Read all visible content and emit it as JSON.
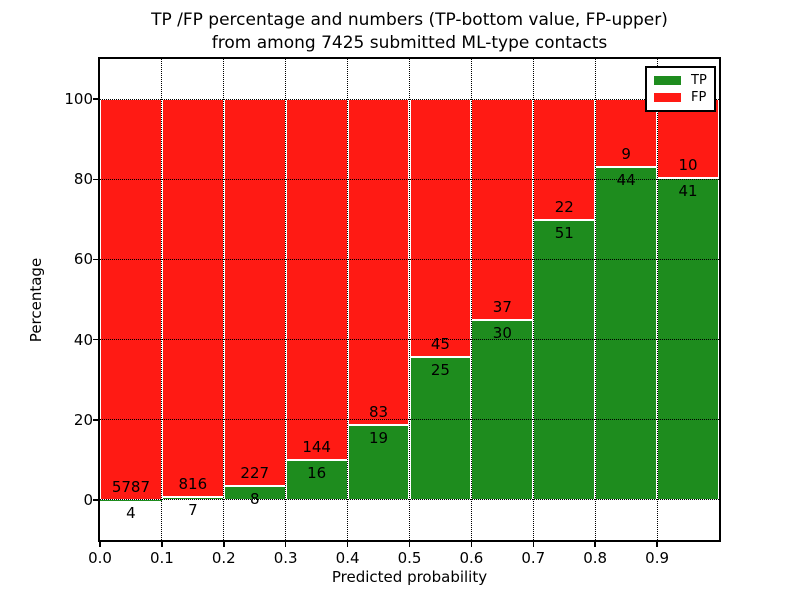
{
  "title": {
    "line1": "TP /FP percentage and numbers (TP-bottom value, FP-upper)",
    "line2": "from among 7425 submitted ML-type contacts"
  },
  "axes": {
    "xlabel": "Predicted probability",
    "ylabel": "Percentage",
    "x_tick_labels": [
      "0.0",
      "0.1",
      "0.2",
      "0.3",
      "0.4",
      "0.5",
      "0.6",
      "0.7",
      "0.8",
      "0.9"
    ],
    "y_tick_labels": [
      "0",
      "20",
      "40",
      "60",
      "80",
      "100"
    ],
    "y_tick_values": [
      0,
      20,
      40,
      60,
      80,
      100
    ]
  },
  "legend": {
    "items": [
      {
        "label": "TP",
        "color": "#1e8c1e"
      },
      {
        "label": "FP",
        "color": "#ff1a14"
      }
    ]
  },
  "chart_data": {
    "type": "bar",
    "stacked": true,
    "normalized": "each 0.1-wide probability bin scaled to 100%",
    "title": "TP /FP percentage and numbers (TP-bottom value, FP-upper) from among 7425 submitted ML-type contacts",
    "xlabel": "Predicted probability",
    "ylabel": "Percentage",
    "xlim": [
      0.0,
      1.0
    ],
    "ylim": [
      -10,
      110
    ],
    "grid": true,
    "grid_style": "dotted",
    "legend_position": "upper right",
    "bin_width": 0.1,
    "bin_starts": [
      0.0,
      0.1,
      0.2,
      0.3,
      0.4,
      0.5,
      0.6,
      0.7,
      0.8,
      0.9
    ],
    "series": [
      {
        "name": "TP",
        "color": "#1e8c1e",
        "counts": [
          4,
          7,
          8,
          16,
          19,
          25,
          30,
          51,
          44,
          41
        ],
        "percent_of_bin": [
          0.07,
          0.85,
          3.4,
          10.0,
          18.63,
          35.71,
          44.78,
          69.86,
          83.02,
          80.39
        ]
      },
      {
        "name": "FP",
        "color": "#ff1a14",
        "counts": [
          5787,
          816,
          227,
          144,
          83,
          45,
          37,
          22,
          9,
          10
        ],
        "percent_of_bin": [
          99.93,
          99.15,
          96.6,
          90.0,
          81.37,
          64.29,
          55.22,
          30.14,
          16.98,
          19.61
        ]
      }
    ],
    "total_contacts": 7425
  }
}
